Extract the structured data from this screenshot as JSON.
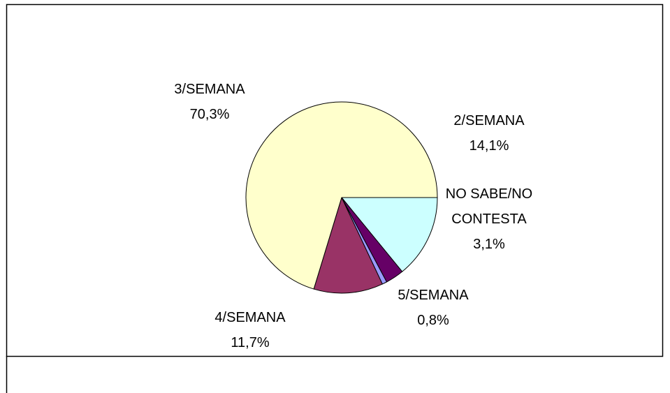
{
  "chart_data": {
    "type": "pie",
    "categories": [
      "2/SEMANA",
      "NO SABE/NO CONTESTA",
      "5/SEMANA",
      "4/SEMANA",
      "3/SEMANA"
    ],
    "values": [
      14.1,
      3.1,
      0.8,
      11.7,
      70.3
    ],
    "value_labels": [
      "14,1%",
      "3,1%",
      "0,8%",
      "11,7%",
      "70,3%"
    ],
    "colors": [
      "#ccffff",
      "#660066",
      "#9999ff",
      "#993366",
      "#ffffcc"
    ]
  }
}
